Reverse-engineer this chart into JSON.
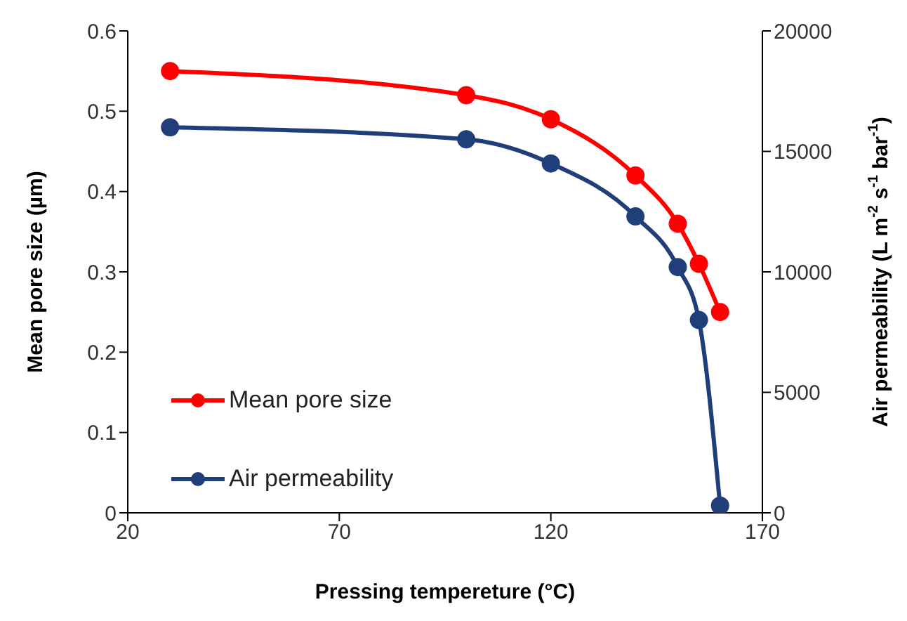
{
  "chart_data": {
    "type": "line",
    "xlabel": "Pressing tempereture (°C)",
    "ylabel": "Mean pore size (µm)",
    "y2label": "Air permeability (L m$^{-2}$ s$^{-1}$ bar$^{-1}$)",
    "x": [
      30,
      100,
      120,
      140,
      150,
      155,
      160
    ],
    "series": [
      {
        "name": "Mean pore size",
        "color": "#ff0000",
        "values": [
          0.55,
          0.52,
          0.49,
          0.42,
          0.36,
          0.31,
          0.25
        ]
      },
      {
        "name": "Air permeability",
        "color": "#203f7a",
        "axis": "y2",
        "values": [
          16000,
          15500,
          14500,
          12300,
          10200,
          8000,
          300
        ]
      }
    ],
    "xlim": [
      20,
      170
    ],
    "xticks": [
      20,
      70,
      120,
      170
    ],
    "ylim": [
      0,
      0.6
    ],
    "yticks": [
      0,
      0.1,
      0.2,
      0.3,
      0.4,
      0.5,
      0.6
    ],
    "y2lim": [
      0,
      20000
    ],
    "y2ticks": [
      0,
      5000,
      10000,
      15000,
      20000
    ],
    "marker": "circle",
    "line_style": "solid",
    "legend": "bottom left",
    "grid": false
  }
}
